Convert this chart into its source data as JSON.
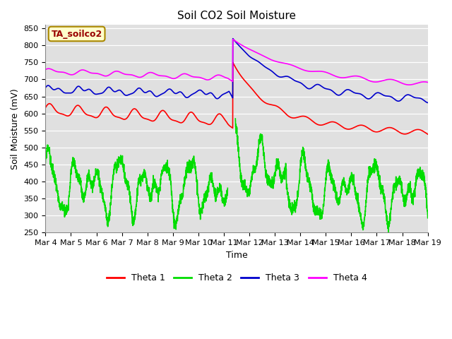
{
  "title": "Soil CO2 Soil Moisture",
  "ylabel": "Soil Moisture (mV)",
  "xlabel": "Time",
  "annotation": "TA_soilco2",
  "ylim": [
    250,
    860
  ],
  "yticks": [
    250,
    300,
    350,
    400,
    450,
    500,
    550,
    600,
    650,
    700,
    750,
    800,
    850
  ],
  "x_tick_labels": [
    "Mar 4",
    "Mar 5",
    "Mar 6",
    "Mar 7",
    "Mar 8",
    "Mar 9",
    "Mar 10",
    "Mar 11",
    "Mar 12",
    "Mar 13",
    "Mar 14",
    "Mar 15",
    "Mar 16",
    "Mar 17",
    "Mar 18",
    "Mar 19"
  ],
  "colors": {
    "theta1": "#ff0000",
    "theta2": "#00dd00",
    "theta3": "#0000cc",
    "theta4": "#ff00ff"
  },
  "bg_color": "#e0e0e0",
  "fig_bg": "#ffffff",
  "legend_labels": [
    "Theta 1",
    "Theta 2",
    "Theta 3",
    "Theta 4"
  ],
  "title_fontsize": 11,
  "axis_label_fontsize": 9,
  "tick_fontsize": 8
}
